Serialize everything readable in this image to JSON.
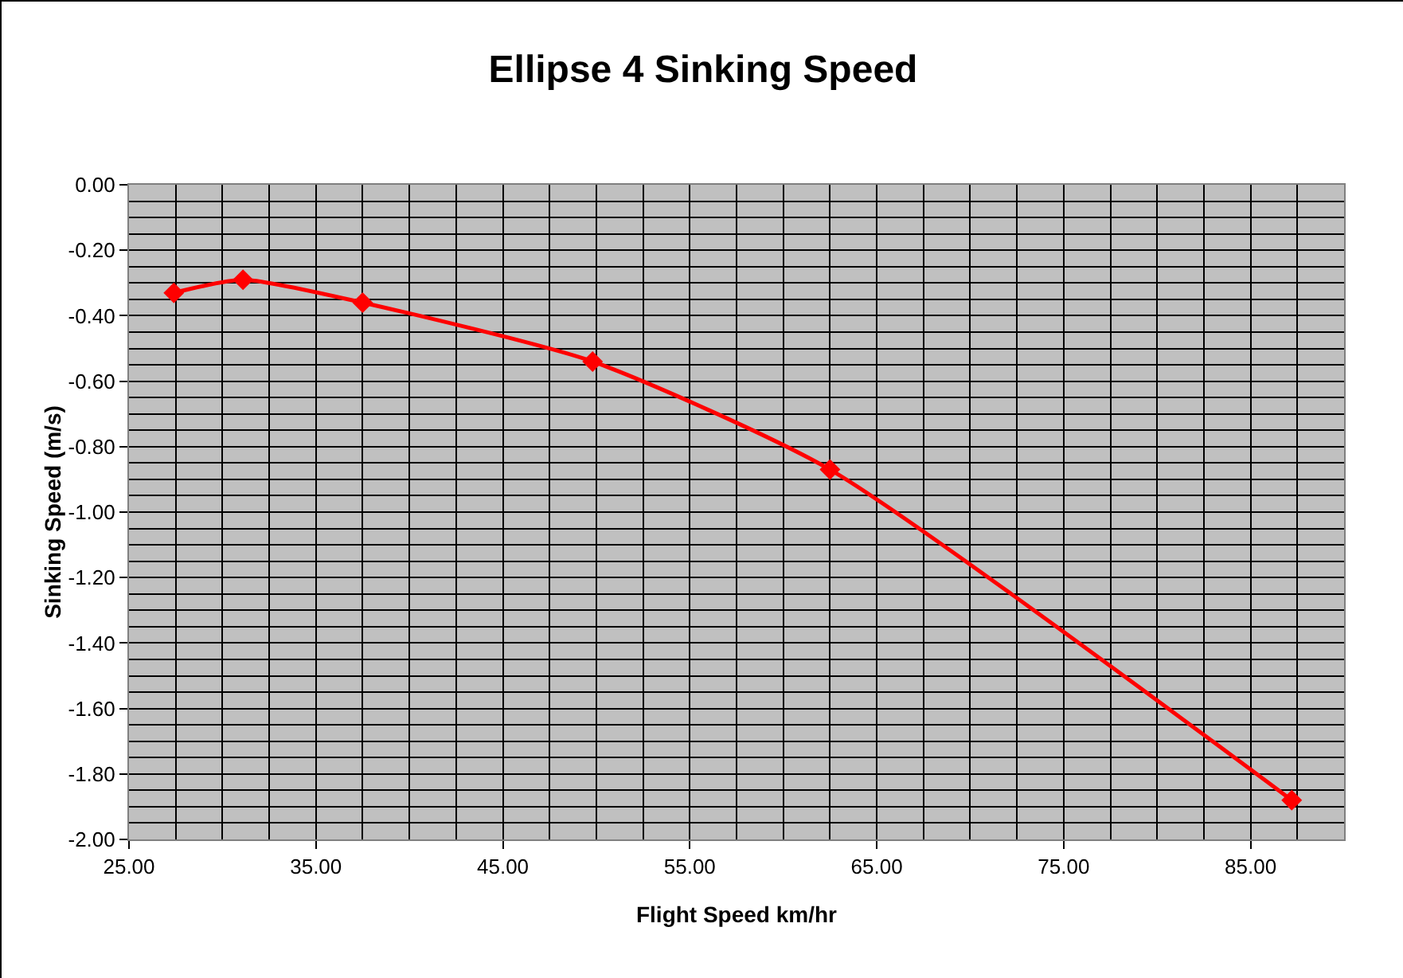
{
  "chart_data": {
    "type": "line",
    "title": "Ellipse 4 Sinking Speed",
    "xlabel": "Flight Speed km/hr",
    "ylabel": "Sinking Speed (m/s)",
    "series": [
      {
        "color": "#ff0000",
        "x": [
          27.4,
          31.1,
          37.5,
          49.8,
          62.5,
          87.2
        ],
        "values": [
          -0.33,
          -0.29,
          -0.36,
          -0.54,
          -0.87,
          -1.88
        ]
      }
    ],
    "xlim": [
      25,
      90
    ],
    "xticks": [
      {
        "value": 25,
        "label": "25.00"
      },
      {
        "value": 35,
        "label": "35.00"
      },
      {
        "value": 45,
        "label": "45.00"
      },
      {
        "value": 55,
        "label": "55.00"
      },
      {
        "value": 65,
        "label": "65.00"
      },
      {
        "value": 75,
        "label": "75.00"
      },
      {
        "value": 85,
        "label": "85.00"
      }
    ],
    "ylim": [
      -2,
      0
    ],
    "yticks": [
      {
        "value": -2,
        "label": "-2.00"
      },
      {
        "value": -1.8,
        "label": "-1.80"
      },
      {
        "value": -1.6,
        "label": "-1.60"
      },
      {
        "value": -1.4,
        "label": "-1.40"
      },
      {
        "value": -1.2,
        "label": "-1.20"
      },
      {
        "value": -1,
        "label": "-1.00"
      },
      {
        "value": -0.8,
        "label": "-0.80"
      },
      {
        "value": -0.6,
        "label": "-0.60"
      },
      {
        "value": -0.4,
        "label": "-0.40"
      },
      {
        "value": -0.2,
        "label": "-0.20"
      },
      {
        "value": 0,
        "label": "0.00"
      }
    ],
    "grid": true,
    "marker": "diamond",
    "line_style": "solid"
  }
}
